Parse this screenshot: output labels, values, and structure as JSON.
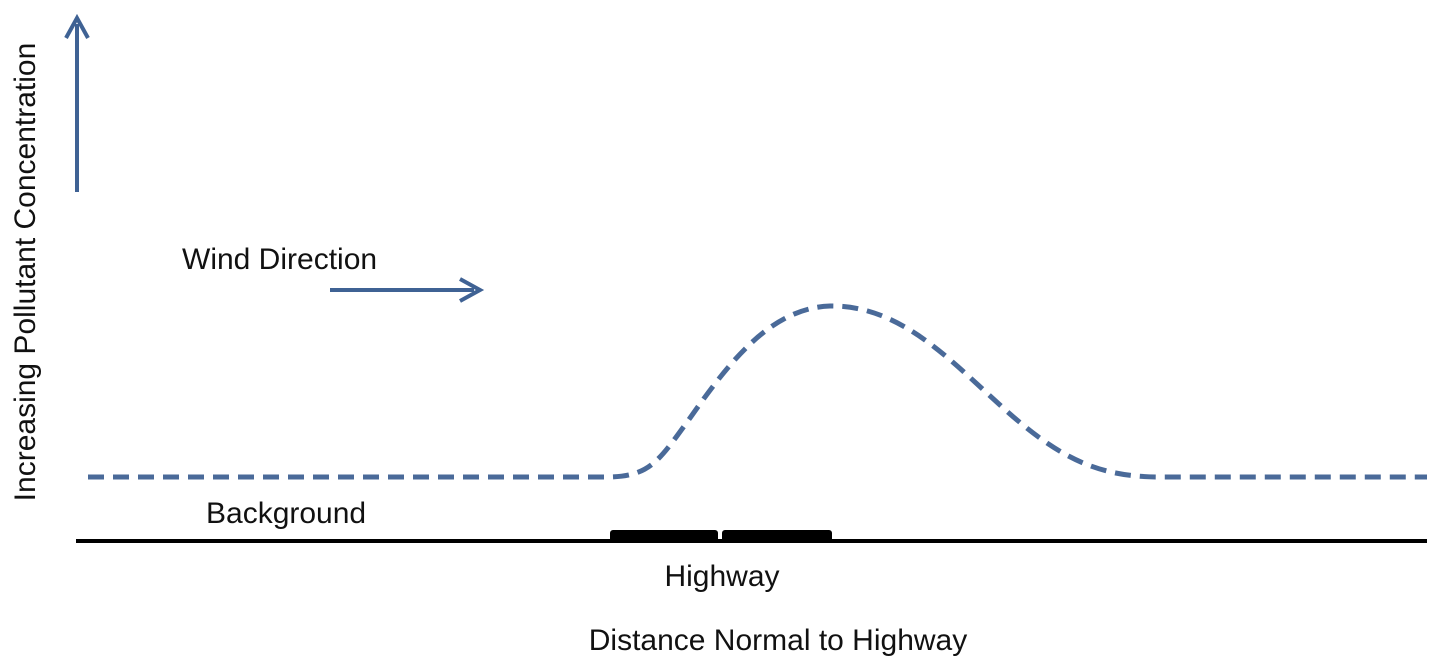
{
  "diagram": {
    "y_axis_label": "Increasing Pollutant Concentration",
    "x_axis_label": "Distance Normal to Highway",
    "wind_label": "Wind Direction",
    "background_label": "Background",
    "highway_label": "Highway",
    "colors": {
      "arrow": "#3f6294",
      "curve": "#4a6a99",
      "baseline": "#000000",
      "text": "#111111"
    }
  }
}
